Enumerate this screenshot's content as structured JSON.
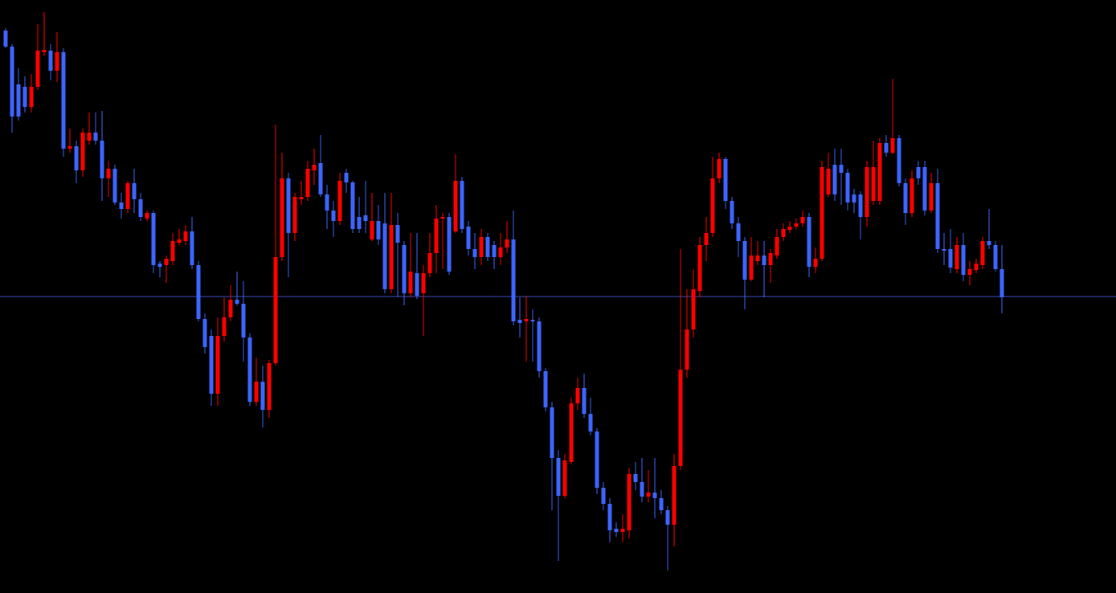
{
  "chart_data": {
    "type": "candlestick",
    "up_color": "#ff0000",
    "down_color": "#3d66ff",
    "ylim": [
      0,
      738
    ],
    "hline": {
      "value": 369,
      "color": "#3f52c8"
    },
    "open": [
      700,
      680,
      633,
      630,
      605,
      630,
      673,
      675,
      650,
      673,
      553,
      556,
      526,
      563,
      573,
      563,
      516,
      528,
      486,
      478,
      510,
      490,
      466,
      473,
      410,
      408,
      413,
      436,
      438,
      450,
      408,
      341,
      320,
      248,
      320,
      343,
      365,
      360,
      318,
      238,
      263,
      228,
      286,
      418,
      516,
      448,
      490,
      493,
      526,
      535,
      496,
      476,
      463,
      523,
      511,
      468,
      470,
      440,
      463,
      460,
      378,
      458,
      433,
      373,
      398,
      373,
      398,
      423,
      466,
      468,
      450,
      513,
      456,
      428,
      418,
      443,
      433,
      418,
      430,
      440,
      340,
      338,
      340,
      338,
      276,
      231,
      168,
      121,
      163,
      236,
      255,
      223,
      201,
      131,
      111,
      80,
      76,
      78,
      148,
      138,
      120,
      125,
      118,
      103,
      85,
      158,
      278,
      328,
      376,
      433,
      448,
      516,
      540,
      488,
      460,
      438,
      390,
      413,
      420,
      408,
      420,
      443,
      452,
      456,
      460,
      468,
      406,
      416,
      496,
      533,
      533,
      523,
      496,
      496,
      468,
      488,
      488,
      560,
      548,
      566,
      510,
      473,
      530,
      530,
      476,
      510,
      428,
      428,
      403,
      433,
      396,
      402,
      408,
      438,
      433,
      403
    ],
    "high": [
      703,
      683,
      653,
      643,
      646,
      708,
      723,
      683,
      698,
      678,
      578,
      563,
      578,
      598,
      598,
      600,
      538,
      533,
      498,
      513,
      528,
      498,
      476,
      476,
      413,
      420,
      448,
      453,
      458,
      468,
      413,
      348,
      328,
      343,
      368,
      383,
      400,
      388,
      323,
      293,
      283,
      290,
      583,
      548,
      523,
      498,
      513,
      538,
      553,
      570,
      508,
      488,
      523,
      528,
      513,
      493,
      513,
      498,
      483,
      498,
      498,
      473,
      438,
      448,
      448,
      408,
      448,
      483,
      473,
      473,
      546,
      518,
      463,
      448,
      453,
      448,
      438,
      448,
      463,
      476,
      368,
      370,
      353,
      343,
      280,
      238,
      178,
      173,
      243,
      268,
      273,
      243,
      205,
      138,
      118,
      88,
      98,
      156,
      163,
      168,
      153,
      168,
      128,
      108,
      173,
      428,
      378,
      403,
      443,
      468,
      543,
      548,
      543,
      493,
      468,
      443,
      443,
      438,
      438,
      428,
      453,
      460,
      463,
      466,
      476,
      473,
      430,
      538,
      548,
      553,
      553,
      528,
      503,
      500,
      538,
      563,
      566,
      570,
      640,
      570,
      516,
      526,
      538,
      538,
      523,
      528,
      448,
      453,
      443,
      448,
      413,
      416,
      443,
      478,
      438,
      433
    ],
    "low": [
      678,
      573,
      588,
      598,
      598,
      626,
      668,
      638,
      636,
      543,
      548,
      510,
      518,
      558,
      558,
      488,
      493,
      483,
      466,
      473,
      473,
      463,
      463,
      398,
      393,
      386,
      408,
      433,
      433,
      403,
      338,
      298,
      233,
      233,
      313,
      338,
      358,
      288,
      233,
      233,
      206,
      218,
      283,
      413,
      393,
      438,
      483,
      488,
      508,
      493,
      453,
      443,
      458,
      498,
      448,
      448,
      448,
      438,
      433,
      373,
      373,
      368,
      358,
      368,
      366,
      320,
      393,
      398,
      403,
      396,
      448,
      448,
      420,
      403,
      408,
      413,
      403,
      408,
      423,
      333,
      318,
      288,
      288,
      268,
      226,
      103,
      40,
      118,
      160,
      228,
      218,
      196,
      123,
      103,
      63,
      70,
      63,
      68,
      128,
      113,
      113,
      93,
      98,
      28,
      58,
      153,
      268,
      318,
      368,
      413,
      443,
      510,
      478,
      453,
      418,
      353,
      388,
      408,
      368,
      386,
      416,
      438,
      448,
      453,
      456,
      393,
      398,
      413,
      493,
      488,
      483,
      476,
      473,
      440,
      456,
      483,
      483,
      543,
      546,
      506,
      458,
      468,
      508,
      470,
      473,
      423,
      408,
      398,
      398,
      388,
      383,
      398,
      403,
      428,
      400,
      348
    ],
    "close": [
      680,
      593,
      593,
      605,
      630,
      675,
      676,
      650,
      673,
      553,
      556,
      526,
      573,
      573,
      563,
      516,
      528,
      486,
      478,
      510,
      490,
      468,
      473,
      408,
      406,
      416,
      438,
      440,
      450,
      408,
      341,
      306,
      248,
      320,
      343,
      365,
      360,
      318,
      238,
      263,
      228,
      286,
      418,
      516,
      448,
      493,
      493,
      528,
      533,
      496,
      476,
      463,
      513,
      511,
      453,
      453,
      463,
      463,
      440,
      378,
      458,
      436,
      373,
      400,
      370,
      398,
      423,
      466,
      468,
      400,
      513,
      453,
      428,
      418,
      443,
      418,
      418,
      430,
      440,
      338,
      336,
      341,
      338,
      276,
      231,
      168,
      121,
      165,
      236,
      255,
      223,
      201,
      131,
      111,
      78,
      76,
      80,
      148,
      138,
      120,
      125,
      118,
      103,
      85,
      158,
      278,
      328,
      378,
      433,
      448,
      516,
      540,
      488,
      460,
      438,
      390,
      420,
      420,
      408,
      423,
      443,
      453,
      456,
      460,
      468,
      406,
      416,
      530,
      528,
      496,
      523,
      486,
      486,
      468,
      530,
      530,
      560,
      548,
      566,
      510,
      473,
      516,
      516,
      476,
      510,
      428,
      426,
      405,
      433,
      396,
      403,
      410,
      438,
      433,
      403,
      368
    ]
  }
}
